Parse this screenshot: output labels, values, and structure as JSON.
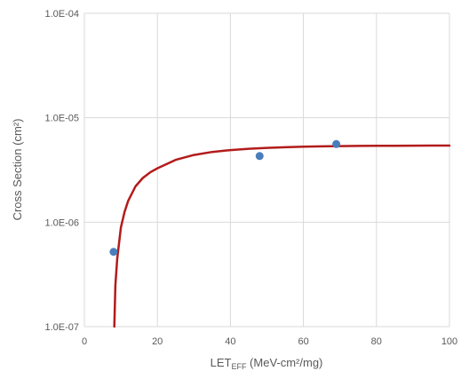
{
  "chart_data": {
    "type": "scatter",
    "title": "",
    "xlabel": "LET",
    "xlabel_sub": "EFF",
    "xlabel_units": " (MeV-cm²/mg)",
    "ylabel": "Cross Section (cm²)",
    "xlim": [
      0,
      100
    ],
    "ylim": [
      1e-07,
      0.0001
    ],
    "yscale": "log",
    "grid": true,
    "legend": "none",
    "x_ticks": [
      0,
      20,
      40,
      60,
      80,
      100
    ],
    "x_tick_labels": [
      "0",
      "20",
      "40",
      "60",
      "80",
      "100"
    ],
    "y_ticks": [
      1e-07,
      1e-06,
      1e-05,
      0.0001
    ],
    "y_tick_labels": [
      "1.0E-07",
      "1.0E-06",
      "1.0E-05",
      "1.0E-04"
    ],
    "series": [
      {
        "kind": "points",
        "color": "#4a7ebb",
        "x": [
          8,
          48,
          69
        ],
        "y": [
          5.2e-07,
          4.3e-06,
          5.6e-06
        ]
      },
      {
        "kind": "fit-curve",
        "color": "#b31b1b",
        "x": [
          8.2,
          8.5,
          9,
          10,
          11,
          12,
          14,
          16,
          18,
          20,
          25,
          30,
          35,
          40,
          45,
          50,
          55,
          60,
          65,
          70,
          75,
          80,
          85,
          90,
          95,
          100
        ],
        "y": [
          1e-07,
          2.5e-07,
          4.5e-07,
          8.9e-07,
          1.25e-06,
          1.6e-06,
          2.2e-06,
          2.65e-06,
          3e-06,
          3.28e-06,
          3.95e-06,
          4.4e-06,
          4.7e-06,
          4.9e-06,
          5.05e-06,
          5.15e-06,
          5.22e-06,
          5.28e-06,
          5.32e-06,
          5.35e-06,
          5.37e-06,
          5.39e-06,
          5.4e-06,
          5.41e-06,
          5.42e-06,
          5.42e-06
        ]
      }
    ]
  }
}
